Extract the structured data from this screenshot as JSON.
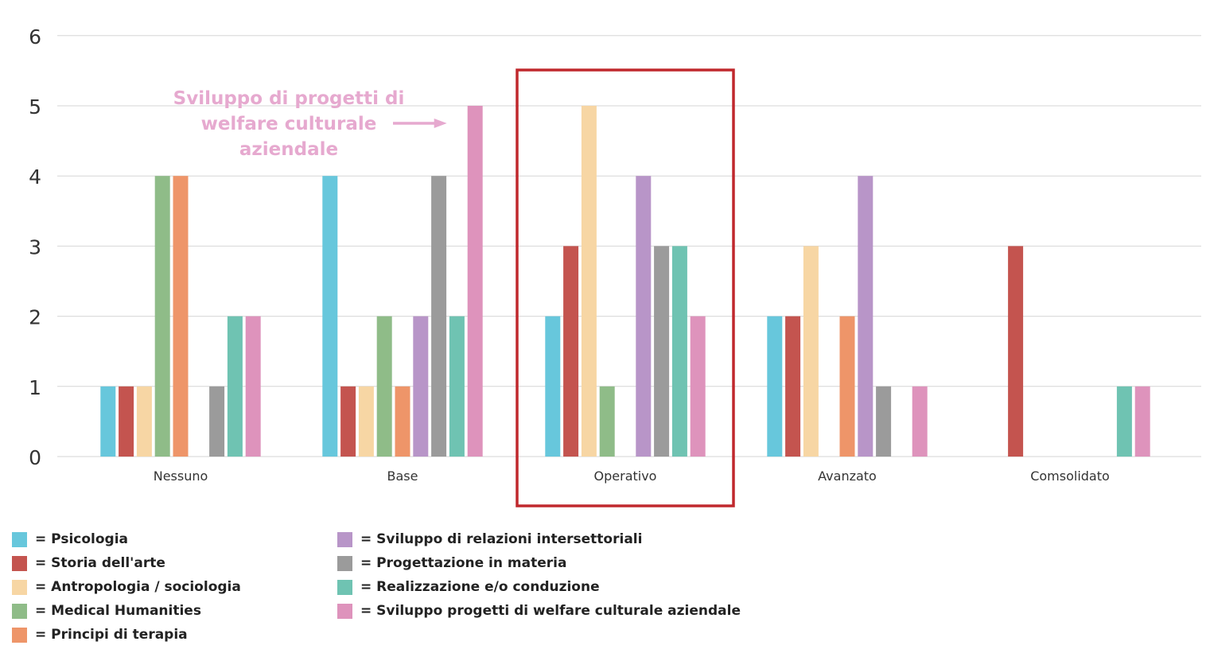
{
  "chart_data": {
    "type": "bar",
    "categories": [
      "Nessuno",
      "Base",
      "Operativo",
      "Avanzato",
      "Comsolidato"
    ],
    "ylim": [
      0,
      6
    ],
    "yticks": [
      0,
      1,
      2,
      3,
      4,
      5,
      6
    ],
    "grid": true,
    "legend_placement": "bottom",
    "series": [
      {
        "name": "Psicologia",
        "color": "#67C7DC",
        "values": [
          1,
          4,
          2,
          2,
          0
        ]
      },
      {
        "name": "Storia dell'arte",
        "color": "#C4544F",
        "values": [
          1,
          1,
          3,
          2,
          3
        ]
      },
      {
        "name": "Antropologia / sociologia",
        "color": "#F7D6A4",
        "values": [
          1,
          1,
          5,
          3,
          0
        ]
      },
      {
        "name": "Medical Humanities",
        "color": "#8FBC88",
        "values": [
          4,
          2,
          1,
          0,
          0
        ]
      },
      {
        "name": "Principi di terapia",
        "color": "#EE9569",
        "values": [
          4,
          1,
          0,
          2,
          0
        ]
      },
      {
        "name": "Sviluppo di relazioni intersettoriali",
        "color": "#B895C8",
        "values": [
          0,
          2,
          4,
          4,
          0
        ]
      },
      {
        "name": "Progettazione in materia",
        "color": "#9B9B9B",
        "values": [
          1,
          4,
          3,
          1,
          0
        ]
      },
      {
        "name": "Realizzazione e/o conduzione",
        "color": "#6FC3B2",
        "values": [
          2,
          2,
          3,
          0,
          1
        ]
      },
      {
        "name": "Sviluppo progetti di welfare culturale aziendale",
        "color": "#DE93BC",
        "values": [
          2,
          5,
          2,
          1,
          1
        ]
      }
    ],
    "legend_prefix": "= ",
    "annotation": {
      "lines": [
        "Sviluppo di progetti di",
        "welfare culturale",
        "aziendale"
      ],
      "color": "#E6A9CF",
      "points_to": {
        "category": "Base",
        "series": "Sviluppo progetti di welfare culturale aziendale"
      }
    },
    "highlight": {
      "category": "Operativo",
      "color": "#C0282D"
    }
  }
}
